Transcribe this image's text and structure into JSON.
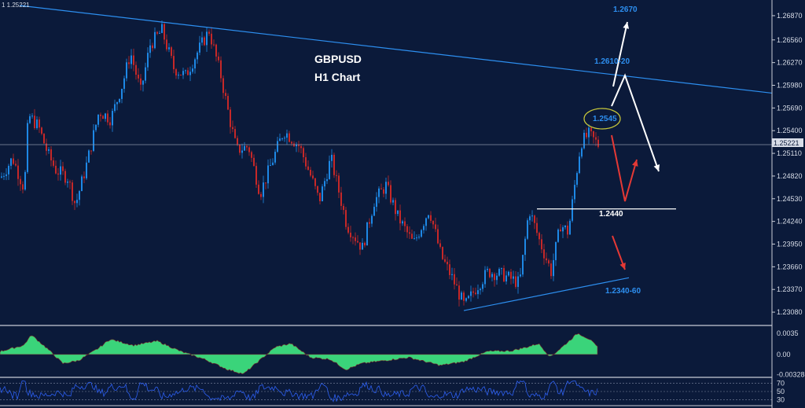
{
  "chart_data": {
    "type": "candlestick",
    "symbol": "GBPUSD",
    "timeframe": "H1 Chart",
    "current_price": "1.25221",
    "header_readout": "1 1.25221",
    "y_ticks": [
      "1.26870",
      "1.26560",
      "1.26270",
      "1.25980",
      "1.25690",
      "1.25400",
      "1.25110",
      "1.24820",
      "1.24530",
      "1.24240",
      "1.23950",
      "1.23660",
      "1.23370",
      "1.23080"
    ],
    "ylim": [
      1.2293,
      1.2702
    ],
    "annotations": {
      "target_top": "1.2670",
      "resistance": "1.2610-20",
      "circled_high": "1.2545",
      "support": "1.2440",
      "trend_support": "1.2340-60"
    },
    "price_path": [
      [
        0,
        1.248
      ],
      [
        15,
        1.2505
      ],
      [
        30,
        1.2465
      ],
      [
        35,
        1.256
      ],
      [
        48,
        1.2545
      ],
      [
        60,
        1.251
      ],
      [
        70,
        1.249
      ],
      [
        85,
        1.248
      ],
      [
        95,
        1.2445
      ],
      [
        110,
        1.25
      ],
      [
        125,
        1.2565
      ],
      [
        140,
        1.2555
      ],
      [
        155,
        1.26
      ],
      [
        165,
        1.264
      ],
      [
        178,
        1.259
      ],
      [
        190,
        1.265
      ],
      [
        205,
        1.2668
      ],
      [
        220,
        1.262
      ],
      [
        235,
        1.261
      ],
      [
        250,
        1.264
      ],
      [
        265,
        1.2668
      ],
      [
        280,
        1.261
      ],
      [
        290,
        1.256
      ],
      [
        300,
        1.2515
      ],
      [
        315,
        1.252
      ],
      [
        330,
        1.246
      ],
      [
        345,
        1.25
      ],
      [
        360,
        1.254
      ],
      [
        380,
        1.252
      ],
      [
        395,
        1.248
      ],
      [
        405,
        1.245
      ],
      [
        420,
        1.2505
      ],
      [
        440,
        1.242
      ],
      [
        460,
        1.239
      ],
      [
        475,
        1.245
      ],
      [
        490,
        1.247
      ],
      [
        505,
        1.243
      ],
      [
        525,
        1.2395
      ],
      [
        545,
        1.244
      ],
      [
        560,
        1.238
      ],
      [
        575,
        1.235
      ],
      [
        590,
        1.2315
      ],
      [
        605,
        1.234
      ],
      [
        620,
        1.236
      ],
      [
        640,
        1.2355
      ],
      [
        660,
        1.2345
      ],
      [
        672,
        1.244
      ],
      [
        685,
        1.24
      ],
      [
        700,
        1.236
      ],
      [
        712,
        1.242
      ],
      [
        722,
        1.241
      ],
      [
        730,
        1.247
      ],
      [
        738,
        1.2525
      ],
      [
        748,
        1.2535
      ],
      [
        760,
        1.2522
      ]
    ],
    "macd": {
      "y_ticks": [
        "0.0035",
        "0.00",
        "-0.003288"
      ],
      "ylim": [
        -0.0035,
        0.0045
      ],
      "values": [
        [
          0,
          0.0005
        ],
        [
          30,
          0.0015
        ],
        [
          40,
          0.0032
        ],
        [
          60,
          0.001
        ],
        [
          80,
          -0.0015
        ],
        [
          100,
          -0.001
        ],
        [
          125,
          0.001
        ],
        [
          140,
          0.0025
        ],
        [
          170,
          0.0015
        ],
        [
          200,
          0.0022
        ],
        [
          230,
          0.0005
        ],
        [
          260,
          -0.0008
        ],
        [
          290,
          -0.0025
        ],
        [
          310,
          -0.0032
        ],
        [
          330,
          -0.001
        ],
        [
          350,
          0.0012
        ],
        [
          370,
          0.0018
        ],
        [
          395,
          -0.0005
        ],
        [
          420,
          -0.0008
        ],
        [
          440,
          -0.0025
        ],
        [
          460,
          -0.0015
        ],
        [
          490,
          -0.001
        ],
        [
          520,
          -0.0005
        ],
        [
          560,
          -0.0018
        ],
        [
          590,
          -0.0012
        ],
        [
          620,
          0.0005
        ],
        [
          650,
          0.0006
        ],
        [
          670,
          0.0012
        ],
        [
          685,
          0.0018
        ],
        [
          700,
          -0.0004
        ],
        [
          715,
          0.0012
        ],
        [
          735,
          0.0035
        ],
        [
          750,
          0.0025
        ],
        [
          760,
          0.0012
        ]
      ]
    },
    "rsi": {
      "y_ticks": [
        "70",
        "50",
        "30"
      ],
      "ylim": [
        20,
        80
      ],
      "series_color": "#2d5ff0"
    },
    "colors": {
      "background": "#0b1a3a",
      "bull": "#1e88e5",
      "bear": "#c62828",
      "trendline": "#2d8ff0",
      "macd_fill": "#3ad47a",
      "arrow_red": "#e53935",
      "arrow_white": "#ffffff"
    },
    "legend": "none",
    "grid": false
  }
}
